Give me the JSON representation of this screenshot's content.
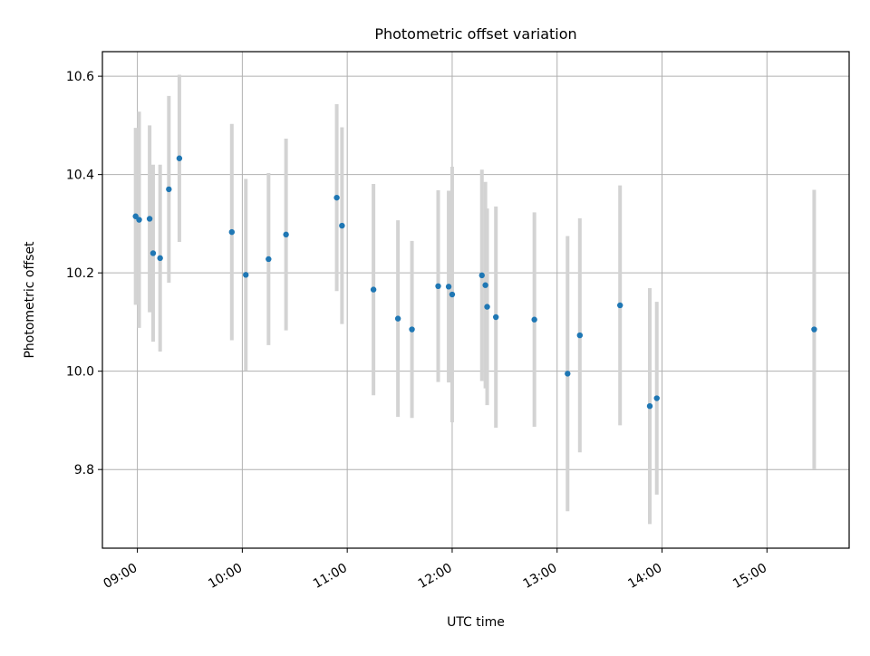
{
  "chart_data": {
    "type": "scatter",
    "title": "Photometric offset variation",
    "xlabel": "UTC time",
    "ylabel": "Photometric offset",
    "x_ticks": [
      "09:00",
      "10:00",
      "11:00",
      "12:00",
      "13:00",
      "14:00",
      "15:00"
    ],
    "y_ticks": [
      "9.8",
      "10.0",
      "10.2",
      "10.4",
      "10.6"
    ],
    "xlim": [
      "08:40",
      "15:47"
    ],
    "ylim": [
      9.64,
      10.65
    ],
    "grid": true,
    "series": [
      {
        "marker_color": "#1f77b4",
        "errorbar_color": "#d3d3d3",
        "points": [
          {
            "x": "08:59",
            "y": 10.315,
            "yerr": 0.18
          },
          {
            "x": "09:01",
            "y": 10.308,
            "yerr": 0.22
          },
          {
            "x": "09:07",
            "y": 10.31,
            "yerr": 0.19
          },
          {
            "x": "09:09",
            "y": 10.24,
            "yerr": 0.18
          },
          {
            "x": "09:13",
            "y": 10.23,
            "yerr": 0.19
          },
          {
            "x": "09:18",
            "y": 10.37,
            "yerr": 0.19
          },
          {
            "x": "09:24",
            "y": 10.433,
            "yerr": 0.17
          },
          {
            "x": "09:54",
            "y": 10.283,
            "yerr": 0.22
          },
          {
            "x": "10:02",
            "y": 10.196,
            "yerr": 0.195
          },
          {
            "x": "10:15",
            "y": 10.228,
            "yerr": 0.175
          },
          {
            "x": "10:25",
            "y": 10.278,
            "yerr": 0.195
          },
          {
            "x": "10:54",
            "y": 10.353,
            "yerr": 0.19
          },
          {
            "x": "10:57",
            "y": 10.296,
            "yerr": 0.2
          },
          {
            "x": "11:15",
            "y": 10.166,
            "yerr": 0.215
          },
          {
            "x": "11:29",
            "y": 10.107,
            "yerr": 0.2
          },
          {
            "x": "11:37",
            "y": 10.085,
            "yerr": 0.18
          },
          {
            "x": "11:52",
            "y": 10.173,
            "yerr": 0.195
          },
          {
            "x": "11:58",
            "y": 10.172,
            "yerr": 0.195
          },
          {
            "x": "12:00",
            "y": 10.156,
            "yerr": 0.26
          },
          {
            "x": "12:17",
            "y": 10.195,
            "yerr": 0.215
          },
          {
            "x": "12:19",
            "y": 10.175,
            "yerr": 0.21
          },
          {
            "x": "12:20",
            "y": 10.131,
            "yerr": 0.2
          },
          {
            "x": "12:25",
            "y": 10.11,
            "yerr": 0.225
          },
          {
            "x": "12:47",
            "y": 10.105,
            "yerr": 0.218
          },
          {
            "x": "13:06",
            "y": 9.995,
            "yerr": 0.28
          },
          {
            "x": "13:13",
            "y": 10.073,
            "yerr": 0.238
          },
          {
            "x": "13:36",
            "y": 10.134,
            "yerr": 0.244
          },
          {
            "x": "13:53",
            "y": 9.929,
            "yerr": 0.24
          },
          {
            "x": "13:57",
            "y": 9.945,
            "yerr": 0.196
          },
          {
            "x": "15:27",
            "y": 10.085,
            "yerr": 0.284
          }
        ]
      }
    ]
  }
}
